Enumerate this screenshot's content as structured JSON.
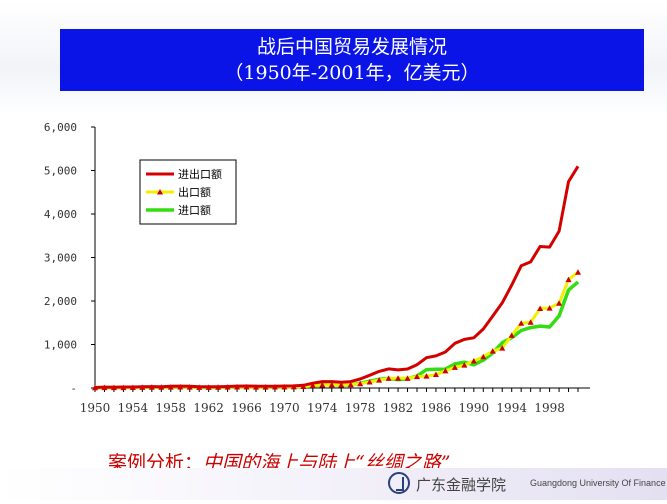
{
  "slide": {
    "title_line1": "战后中国贸易发展情况",
    "title_line2": "（1950年-2001年，亿美元）",
    "subtitle_prefix": "案例分析：",
    "subtitle_link": "中国的海上与陆上“丝绸之路”",
    "school_name_cn": "广东金融学院",
    "school_name_en": "Guangdong University Of Finance"
  },
  "colors": {
    "title_bg": "#0a14e6",
    "total": "#d40000",
    "export": "#f0f000",
    "export_marker": "#cc0000",
    "import": "#33dd11",
    "subtitle": "#cc0000"
  },
  "chart_data": {
    "type": "line",
    "x": [
      1950,
      1951,
      1952,
      1953,
      1954,
      1955,
      1956,
      1957,
      1958,
      1959,
      1960,
      1961,
      1962,
      1963,
      1964,
      1965,
      1966,
      1967,
      1968,
      1969,
      1970,
      1971,
      1972,
      1973,
      1974,
      1975,
      1976,
      1977,
      1978,
      1979,
      1980,
      1981,
      1982,
      1983,
      1984,
      1985,
      1986,
      1987,
      1988,
      1989,
      1990,
      1991,
      1992,
      1993,
      1994,
      1995,
      1996,
      1997,
      1998,
      1999,
      2000,
      2001
    ],
    "x_tick_labels": [
      "1950",
      "1954",
      "1958",
      "1962",
      "1966",
      "1970",
      "1974",
      "1978",
      "1982",
      "1986",
      "1990",
      "1994",
      "1998"
    ],
    "y_tick_labels": [
      "-",
      "1,000",
      "2,000",
      "3,000",
      "4,000",
      "5,000",
      "6,000"
    ],
    "ylim": [
      0,
      6000
    ],
    "grid": false,
    "legend_position": "upper-left",
    "series": [
      {
        "name": "进出口额",
        "values": [
          11,
          20,
          19,
          24,
          24,
          31,
          32,
          31,
          39,
          44,
          38,
          29,
          27,
          29,
          35,
          43,
          46,
          42,
          41,
          41,
          46,
          48,
          63,
          110,
          146,
          147,
          134,
          148,
          206,
          293,
          381,
          440,
          416,
          436,
          536,
          696,
          738,
          827,
          1028,
          1117,
          1154,
          1357,
          1655,
          1957,
          2366,
          2809,
          2899,
          3252,
          3239,
          3607,
          4743,
          5097
        ]
      },
      {
        "name": "出口额",
        "values": [
          6,
          8,
          8,
          10,
          12,
          14,
          17,
          16,
          20,
          23,
          19,
          15,
          15,
          17,
          19,
          22,
          24,
          21,
          21,
          22,
          23,
          26,
          34,
          58,
          70,
          73,
          69,
          76,
          98,
          137,
          181,
          220,
          223,
          222,
          261,
          274,
          309,
          395,
          475,
          525,
          621,
          719,
          849,
          917,
          1210,
          1488,
          1511,
          1828,
          1837,
          1949,
          2492,
          2662
        ]
      },
      {
        "name": "进口额",
        "values": [
          5,
          12,
          11,
          13,
          13,
          17,
          16,
          15,
          19,
          21,
          20,
          14,
          12,
          13,
          16,
          21,
          22,
          20,
          20,
          19,
          23,
          22,
          29,
          52,
          76,
          75,
          66,
          72,
          109,
          157,
          200,
          220,
          193,
          214,
          274,
          423,
          429,
          432,
          553,
          592,
          534,
          638,
          806,
          1040,
          1156,
          1321,
          1388,
          1424,
          1402,
          1657,
          2251,
          2436
        ]
      }
    ]
  }
}
